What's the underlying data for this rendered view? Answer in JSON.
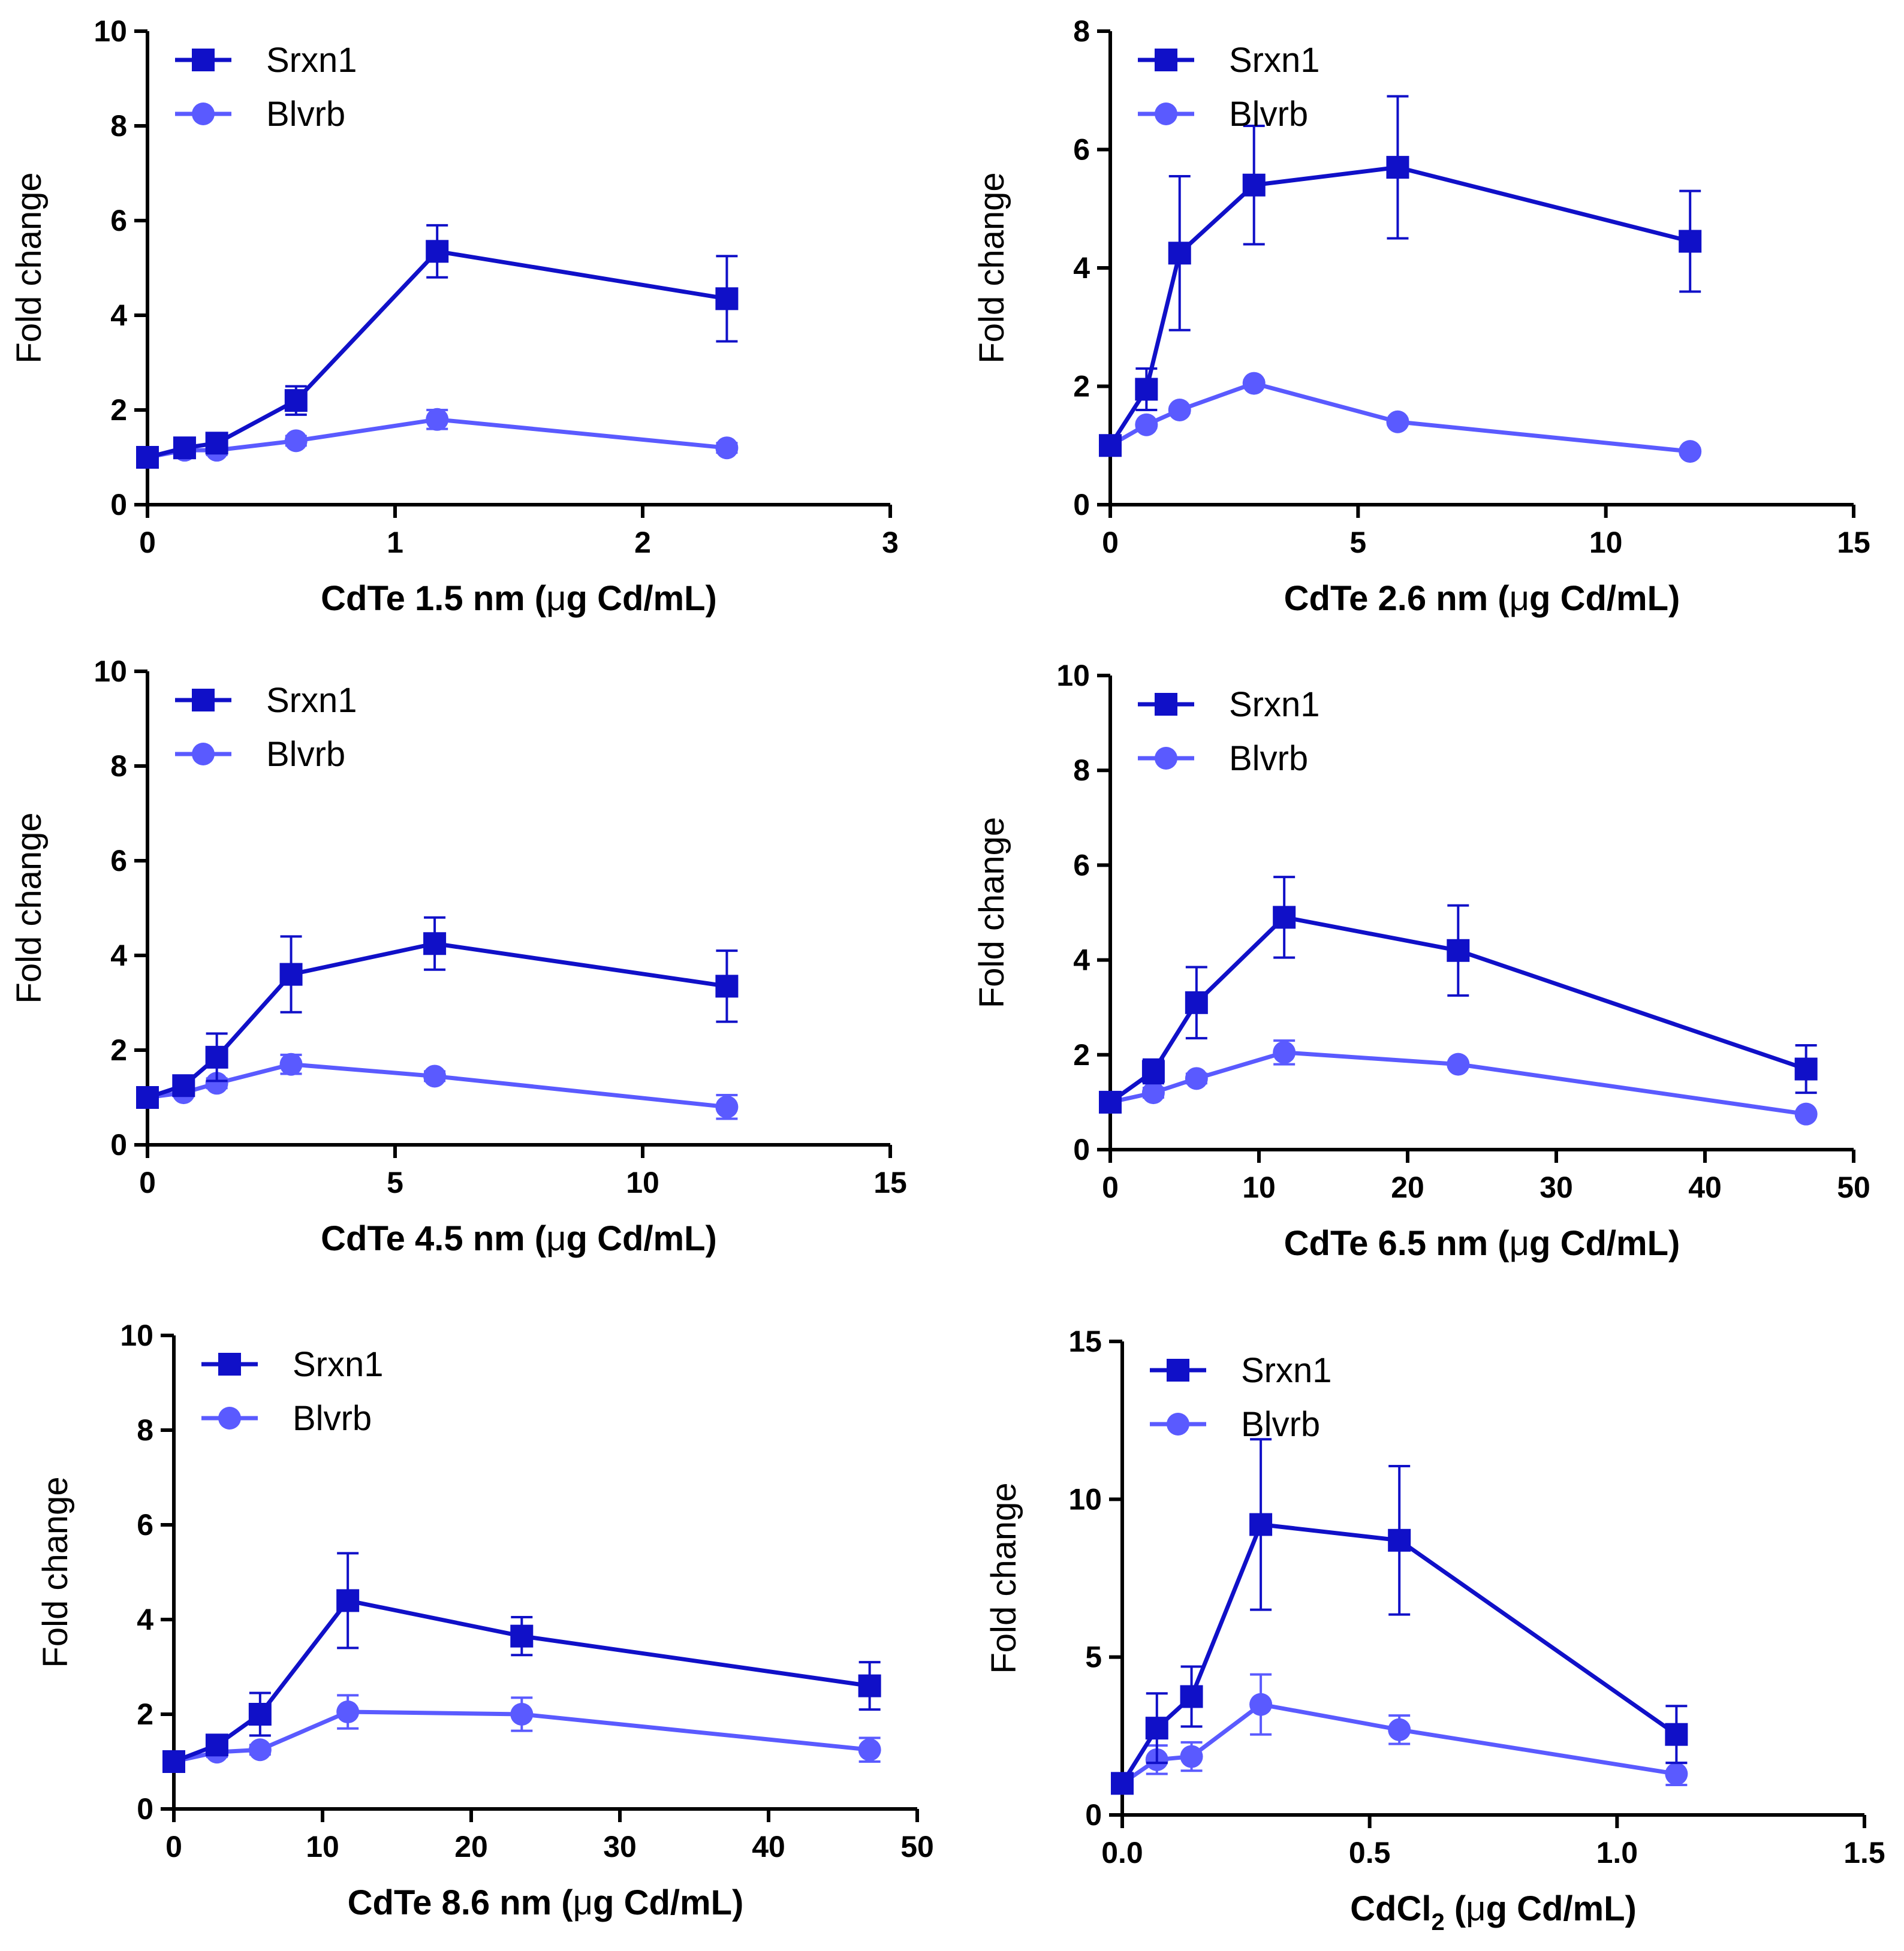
{
  "colors": {
    "srxn1": "#1010c8",
    "blvrb": "#5a5aff",
    "axis": "#000000"
  },
  "chart_data": [
    {
      "type": "line",
      "xlabel_parts": [
        "CdTe 1.5 nm (",
        "μ",
        "g Cd/mL)"
      ],
      "ylabel": "Fold change",
      "xlim": [
        0,
        3
      ],
      "ylim": [
        0,
        10
      ],
      "xticks": [
        0,
        1,
        2,
        3
      ],
      "xtick_labels": [
        "0",
        "1",
        "2",
        "3"
      ],
      "yticks": [
        0,
        2,
        4,
        6,
        8,
        10
      ],
      "ytick_labels": [
        "0",
        "2",
        "4",
        "6",
        "8",
        "10"
      ],
      "legend_position": "top-left",
      "series": [
        {
          "name": "Srxn1",
          "marker": "square",
          "x": [
            0,
            0.15,
            0.28,
            0.6,
            1.17,
            2.34
          ],
          "y": [
            1.0,
            1.2,
            1.3,
            2.2,
            5.35,
            4.35
          ],
          "err": [
            0.1,
            0.15,
            0.15,
            0.3,
            0.55,
            0.9
          ]
        },
        {
          "name": "Blvrb",
          "marker": "circle",
          "x": [
            0,
            0.15,
            0.28,
            0.6,
            1.17,
            2.34
          ],
          "y": [
            1.0,
            1.15,
            1.15,
            1.35,
            1.8,
            1.2
          ],
          "err": [
            0.05,
            0.1,
            0.1,
            0.1,
            0.2,
            0.1
          ]
        }
      ]
    },
    {
      "type": "line",
      "xlabel_parts": [
        "CdTe 2.6 nm (",
        "μ",
        "g Cd/mL)"
      ],
      "ylabel": "Fold change",
      "xlim": [
        0,
        15
      ],
      "ylim": [
        0,
        8
      ],
      "xticks": [
        0,
        5,
        10,
        15
      ],
      "xtick_labels": [
        "0",
        "5",
        "10",
        "15"
      ],
      "yticks": [
        0,
        2,
        4,
        6,
        8
      ],
      "ytick_labels": [
        "0",
        "2",
        "4",
        "6",
        "8"
      ],
      "legend_position": "top-left",
      "series": [
        {
          "name": "Srxn1",
          "marker": "square",
          "x": [
            0,
            0.73,
            1.4,
            2.9,
            5.8,
            11.7
          ],
          "y": [
            1.0,
            1.95,
            4.25,
            5.4,
            5.7,
            4.45
          ],
          "err": [
            0.05,
            0.35,
            1.3,
            1.0,
            1.2,
            0.85
          ]
        },
        {
          "name": "Blvrb",
          "marker": "circle",
          "x": [
            0,
            0.73,
            1.4,
            2.9,
            5.8,
            11.7
          ],
          "y": [
            1.0,
            1.35,
            1.6,
            2.05,
            1.4,
            0.9
          ],
          "err": [
            0.05,
            0.05,
            0.05,
            0.05,
            0.05,
            0.05
          ]
        }
      ]
    },
    {
      "type": "line",
      "xlabel_parts": [
        "CdTe 4.5 nm (",
        "μ",
        "g Cd/mL)"
      ],
      "ylabel": "Fold change",
      "xlim": [
        0,
        15
      ],
      "ylim": [
        0,
        10
      ],
      "xticks": [
        0,
        5,
        10,
        15
      ],
      "xtick_labels": [
        "0",
        "5",
        "10",
        "15"
      ],
      "yticks": [
        0,
        2,
        4,
        6,
        8,
        10
      ],
      "ytick_labels": [
        "0",
        "2",
        "4",
        "6",
        "8",
        "10"
      ],
      "legend_position": "top-left",
      "series": [
        {
          "name": "Srxn1",
          "marker": "square",
          "x": [
            0,
            0.73,
            1.4,
            2.9,
            5.8,
            11.7
          ],
          "y": [
            1.0,
            1.25,
            1.85,
            3.6,
            4.25,
            3.35
          ],
          "err": [
            0.05,
            0.1,
            0.5,
            0.8,
            0.55,
            0.75
          ]
        },
        {
          "name": "Blvrb",
          "marker": "circle",
          "x": [
            0,
            0.73,
            1.4,
            2.9,
            5.8,
            11.7
          ],
          "y": [
            1.0,
            1.1,
            1.3,
            1.7,
            1.45,
            0.8
          ],
          "err": [
            0.05,
            0.05,
            0.1,
            0.2,
            0.1,
            0.25
          ]
        }
      ]
    },
    {
      "type": "line",
      "xlabel_parts": [
        "CdTe 6.5 nm (",
        "μ",
        "g Cd/mL)"
      ],
      "ylabel": "Fold change",
      "xlim": [
        0,
        50
      ],
      "ylim": [
        0,
        10
      ],
      "xticks": [
        0,
        10,
        20,
        30,
        40,
        50
      ],
      "xtick_labels": [
        "0",
        "10",
        "20",
        "30",
        "40",
        "50"
      ],
      "yticks": [
        0,
        2,
        4,
        6,
        8,
        10
      ],
      "ytick_labels": [
        "0",
        "2",
        "4",
        "6",
        "8",
        "10"
      ],
      "legend_position": "top-left",
      "series": [
        {
          "name": "Srxn1",
          "marker": "square",
          "x": [
            0,
            2.9,
            5.8,
            11.7,
            23.4,
            46.8
          ],
          "y": [
            1.0,
            1.65,
            3.1,
            4.9,
            4.2,
            1.7
          ],
          "err": [
            0.05,
            0.25,
            0.75,
            0.85,
            0.95,
            0.5
          ]
        },
        {
          "name": "Blvrb",
          "marker": "circle",
          "x": [
            0,
            2.9,
            5.8,
            11.7,
            23.4,
            46.8
          ],
          "y": [
            1.0,
            1.2,
            1.5,
            2.05,
            1.8,
            0.75
          ],
          "err": [
            0.05,
            0.1,
            0.1,
            0.25,
            0.05,
            0.05
          ]
        }
      ]
    },
    {
      "type": "line",
      "xlabel_parts": [
        "CdTe 8.6 nm (",
        "μ",
        "g Cd/mL)"
      ],
      "ylabel": "Fold change",
      "xlim": [
        0,
        50
      ],
      "ylim": [
        0,
        10
      ],
      "xticks": [
        0,
        10,
        20,
        30,
        40,
        50
      ],
      "xtick_labels": [
        "0",
        "10",
        "20",
        "30",
        "40",
        "50"
      ],
      "yticks": [
        0,
        2,
        4,
        6,
        8,
        10
      ],
      "ytick_labels": [
        "0",
        "2",
        "4",
        "6",
        "8",
        "10"
      ],
      "legend_position": "top-left",
      "series": [
        {
          "name": "Srxn1",
          "marker": "square",
          "x": [
            0,
            2.9,
            5.8,
            11.7,
            23.4,
            46.8
          ],
          "y": [
            1.0,
            1.35,
            2.0,
            4.4,
            3.65,
            2.6
          ],
          "err": [
            0.05,
            0.1,
            0.45,
            1.0,
            0.4,
            0.5
          ]
        },
        {
          "name": "Blvrb",
          "marker": "circle",
          "x": [
            0,
            2.9,
            5.8,
            11.7,
            23.4,
            46.8
          ],
          "y": [
            1.0,
            1.2,
            1.25,
            2.05,
            2.0,
            1.25
          ],
          "err": [
            0.05,
            0.1,
            0.1,
            0.35,
            0.35,
            0.25
          ]
        }
      ]
    },
    {
      "type": "line",
      "xlabel_parts": [
        "CdCl",
        "2",
        " (",
        "μ",
        "g Cd/mL)"
      ],
      "ylabel": "Fold change",
      "xlim": [
        0,
        1.5
      ],
      "ylim": [
        0,
        15
      ],
      "xticks": [
        0,
        0.5,
        1.0,
        1.5
      ],
      "xtick_labels": [
        "0.0",
        "0.5",
        "1.0",
        "1.5"
      ],
      "yticks": [
        0,
        5,
        10,
        15
      ],
      "ytick_labels": [
        "0",
        "5",
        "10",
        "15"
      ],
      "legend_position": "top-left",
      "series": [
        {
          "name": "Srxn1",
          "marker": "square",
          "x": [
            0,
            0.07,
            0.14,
            0.28,
            0.56,
            1.12
          ],
          "y": [
            1.0,
            2.75,
            3.75,
            9.2,
            8.7,
            2.55
          ],
          "err": [
            0.1,
            1.1,
            0.95,
            2.7,
            2.35,
            0.9
          ]
        },
        {
          "name": "Blvrb",
          "marker": "circle",
          "x": [
            0,
            0.07,
            0.14,
            0.28,
            0.56,
            1.12
          ],
          "y": [
            1.0,
            1.75,
            1.85,
            3.5,
            2.7,
            1.3
          ],
          "err": [
            0.1,
            0.45,
            0.45,
            0.95,
            0.45,
            0.35
          ]
        }
      ]
    }
  ]
}
